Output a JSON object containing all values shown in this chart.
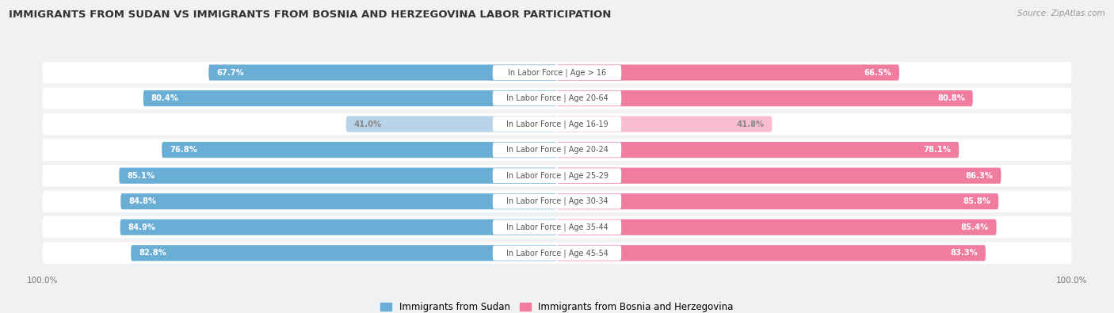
{
  "title": "IMMIGRANTS FROM SUDAN VS IMMIGRANTS FROM BOSNIA AND HERZEGOVINA LABOR PARTICIPATION",
  "source": "Source: ZipAtlas.com",
  "categories": [
    "In Labor Force | Age > 16",
    "In Labor Force | Age 20-64",
    "In Labor Force | Age 16-19",
    "In Labor Force | Age 20-24",
    "In Labor Force | Age 25-29",
    "In Labor Force | Age 30-34",
    "In Labor Force | Age 35-44",
    "In Labor Force | Age 45-54"
  ],
  "sudan_values": [
    67.7,
    80.4,
    41.0,
    76.8,
    85.1,
    84.8,
    84.9,
    82.8
  ],
  "bosnia_values": [
    66.5,
    80.8,
    41.8,
    78.1,
    86.3,
    85.8,
    85.4,
    83.3
  ],
  "sudan_color": "#6aaed6",
  "bosnia_color": "#f07ca0",
  "sudan_light_color": "#b8d4ea",
  "bosnia_light_color": "#f9bdd0",
  "row_bg_color": "#e8eaed",
  "bg_color": "#f0f1f3",
  "legend_sudan": "Immigrants from Sudan",
  "legend_bosnia": "Immigrants from Bosnia and Herzegovina",
  "max_value": 100.0,
  "figsize": [
    14.06,
    3.95
  ],
  "dpi": 100
}
